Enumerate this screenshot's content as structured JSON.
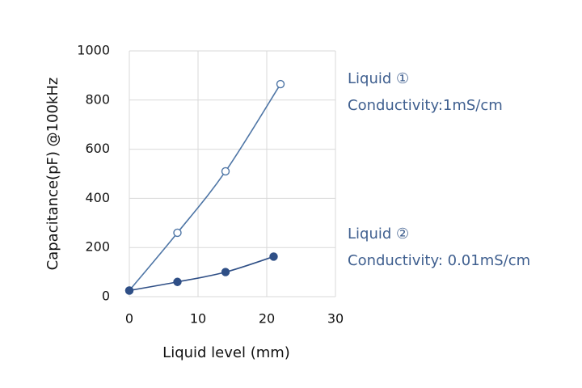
{
  "chart_data": {
    "type": "scatter",
    "xlabel": "Liquid level (mm)",
    "ylabel": "Capacitance(pF) @100kHz",
    "xlim": [
      0,
      30
    ],
    "xticks": [
      0,
      10,
      20,
      30
    ],
    "ylim": [
      0,
      1000
    ],
    "yticks": [
      0,
      200,
      400,
      600,
      800,
      1000
    ],
    "grid": true,
    "series": [
      {
        "name": "Liquid ①",
        "color": "#4f76a6",
        "marker": "open",
        "x": [
          0,
          7,
          14,
          22
        ],
        "values": [
          25,
          260,
          510,
          865
        ]
      },
      {
        "name": "Liquid ②",
        "color": "#2f4f86",
        "marker": "filled",
        "x": [
          0,
          7,
          14,
          21
        ],
        "values": [
          25,
          60,
          100,
          163
        ]
      }
    ],
    "annotations": [
      "Conductivity:1mS/cm",
      "Conductivity: 0.01mS/cm"
    ]
  }
}
